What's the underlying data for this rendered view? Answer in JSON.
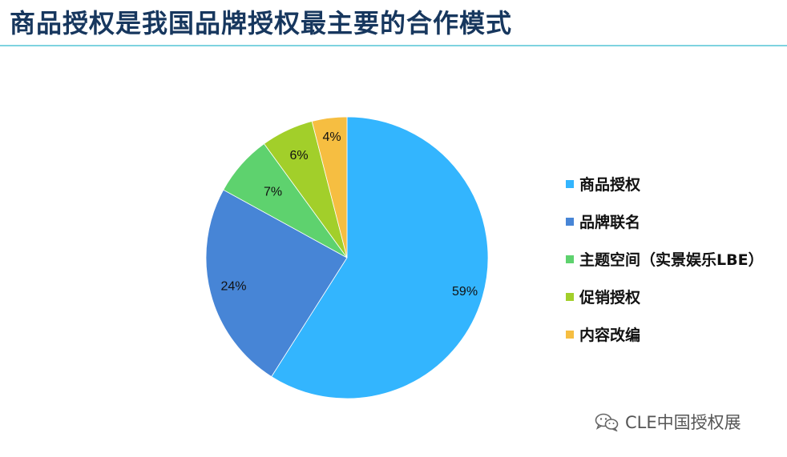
{
  "header": {
    "title": "商品授权是我国品牌授权最主要的合作模式"
  },
  "chart_data": {
    "type": "pie",
    "title": "",
    "unit": "%",
    "start": "12 o'clock, clockwise",
    "labels": [
      "商品授权",
      "品牌联名",
      "主题空间（实景娱乐LBE）",
      "促销授权",
      "内容改编"
    ],
    "values": [
      59,
      24,
      7,
      6,
      4
    ],
    "value_labels": [
      "59%",
      "24%",
      "7%",
      "6%",
      "4%"
    ],
    "colors": [
      "#33b5fe",
      "#4785d6",
      "#5ed26e",
      "#a2cf2a",
      "#f6be41"
    ],
    "legend": "right"
  },
  "watermark": {
    "text": "CLE中国授权展",
    "icon": "wechat-icon"
  }
}
